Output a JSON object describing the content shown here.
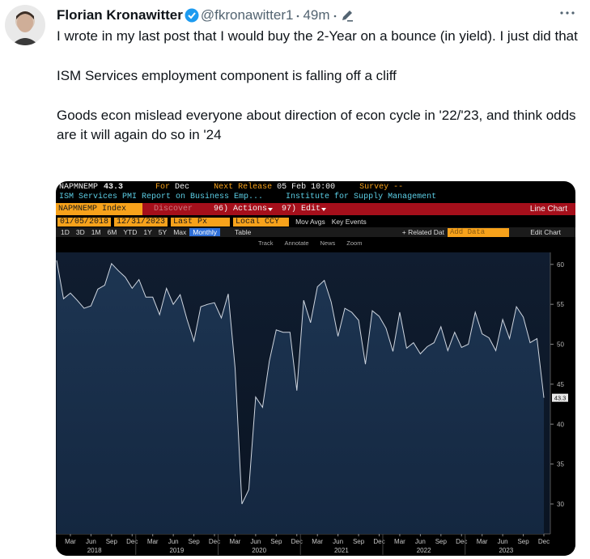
{
  "tweet": {
    "name": "Florian Kronawitter",
    "handle": "@fkronawitter1",
    "time": "49m",
    "paragraphs": [
      "I wrote in my last post that I would buy the 2-Year on a bounce (in yield). I just did that",
      "ISM Services employment component is falling off a cliff",
      "Goods econ mislead everyone about direction of econ cycle in '22/'23, and think odds are it will again do so in '24"
    ]
  },
  "terminal": {
    "ticker": "NAPMNEMP",
    "for_label": "For",
    "period": "Dec",
    "next_release_label": "Next Release",
    "next_release": "05 Feb 10:00",
    "survey": "Survey --",
    "description": "ISM Services PMI Report on Business Emp...",
    "source": "Institute for Supply Management",
    "security": "NAPMNEMP Index",
    "discover": "Discover",
    "actions": "96) Actions",
    "edit": "97) Edit",
    "chart_type": "Line Chart",
    "start_date": "01/05/2018",
    "end_date": "12/31/2023",
    "field": "Last Px",
    "currency": "Local CCY",
    "mov_avgs": "Mov Avgs",
    "key_events": "Key Events",
    "ranges": [
      "1D",
      "3D",
      "1M",
      "6M",
      "YTD",
      "1Y",
      "5Y",
      "Max"
    ],
    "frequency": "Monthly",
    "table": "Table",
    "related": "+ Related Dat",
    "add_data": "Add Data",
    "edit_chart": "Edit Chart",
    "tools": [
      "Track",
      "Annotate",
      "News",
      "Zoom"
    ]
  },
  "chart_data": {
    "type": "line",
    "categories": [
      null,
      null,
      "Mar",
      null,
      null,
      "Jun",
      null,
      null,
      "Sep",
      null,
      null,
      "Dec",
      null,
      null,
      "Mar",
      null,
      null,
      "Jun",
      null,
      null,
      "Sep",
      null,
      null,
      "Dec",
      null,
      null,
      "Mar",
      null,
      null,
      "Jun",
      null,
      null,
      "Sep",
      null,
      null,
      "Dec",
      null,
      null,
      "Mar",
      null,
      null,
      "Jun",
      null,
      null,
      "Sep",
      null,
      null,
      "Dec",
      null,
      null,
      "Mar",
      null,
      null,
      "Jun",
      null,
      null,
      "Sep",
      null,
      null,
      "Dec",
      null,
      null,
      "Mar",
      null,
      null,
      "Jun",
      null,
      null,
      "Sep",
      null,
      null,
      "Dec"
    ],
    "year_labels": [
      "2018",
      "2019",
      "2020",
      "2021",
      "2022",
      "2023"
    ],
    "values": [
      60.5,
      55.7,
      56.4,
      55.5,
      54.5,
      54.8,
      56.9,
      57.4,
      60.1,
      59.2,
      58.4,
      57.0,
      58.1,
      55.9,
      55.9,
      53.7,
      57.0,
      55.0,
      56.2,
      53.1,
      50.4,
      54.7,
      55.0,
      55.2,
      53.3,
      56.3,
      47.0,
      30.0,
      31.8,
      43.4,
      42.1,
      47.9,
      51.8,
      51.5,
      51.5,
      44.2,
      55.5,
      52.7,
      57.2,
      58.0,
      55.3,
      51.0,
      54.5,
      54.0,
      53.0,
      47.5,
      54.2,
      53.5,
      52.0,
      49.1,
      54.0,
      49.5,
      50.2,
      48.8,
      49.7,
      50.2,
      52.2,
      49.2,
      51.5,
      49.6,
      50.0,
      54.0,
      51.3,
      50.8,
      49.2,
      53.1,
      50.7,
      54.7,
      53.4,
      50.2,
      50.7,
      43.3
    ],
    "color": "#cfd6e0",
    "ylim": [
      26.25,
      61.5
    ],
    "yticks": [
      30,
      35,
      40,
      45,
      50,
      55,
      60
    ],
    "grid": false
  }
}
